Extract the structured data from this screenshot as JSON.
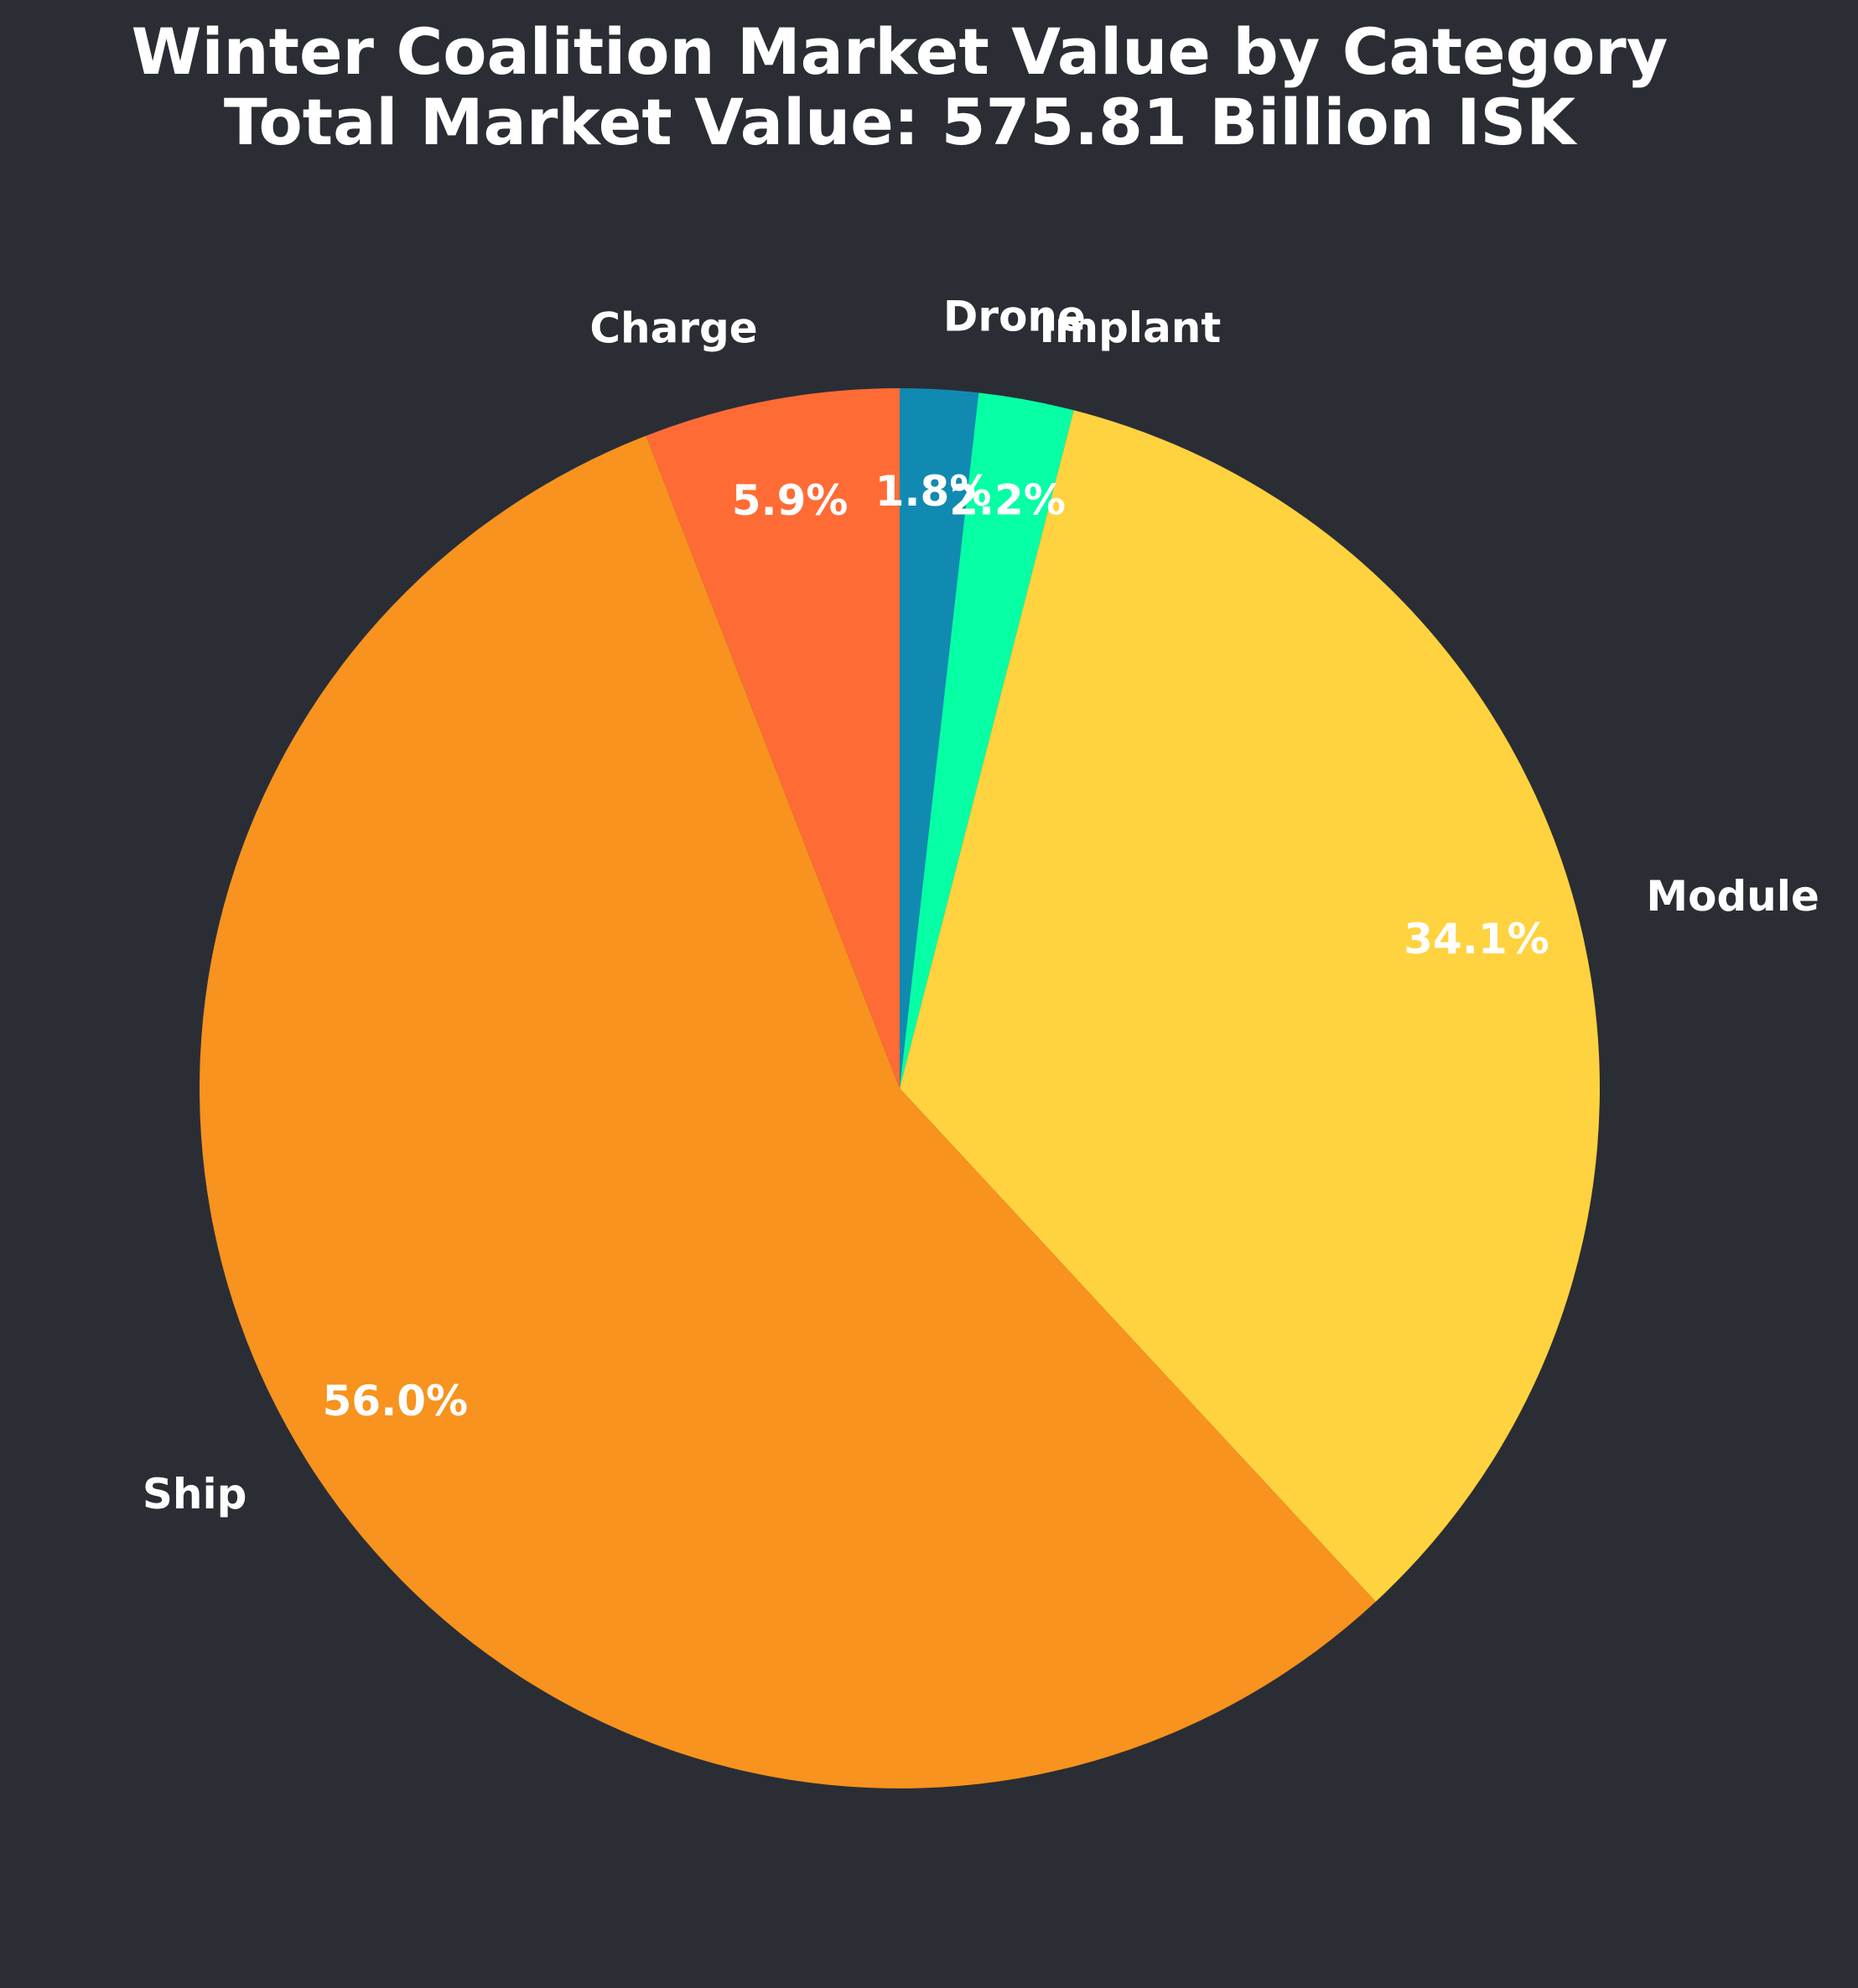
{
  "chart_data": {
    "type": "pie",
    "title": "Winter Coalition Market Value by Category",
    "subtitle": "Total Market Value: 575.81 Billion ISK",
    "categories": [
      "Drone",
      "Implant",
      "Module",
      "Ship",
      "Charge"
    ],
    "values": [
      1.8,
      2.2,
      34.1,
      56.0,
      5.9
    ],
    "value_labels": [
      "1.8%",
      "2.2%",
      "34.1%",
      "56.0%",
      "5.9%"
    ],
    "colors": [
      "#118ab2",
      "#06ffa5",
      "#ffd23f",
      "#f7931e",
      "#ff6b35"
    ],
    "start_angle_deg": 90,
    "direction": "clockwise",
    "legend": "none"
  }
}
